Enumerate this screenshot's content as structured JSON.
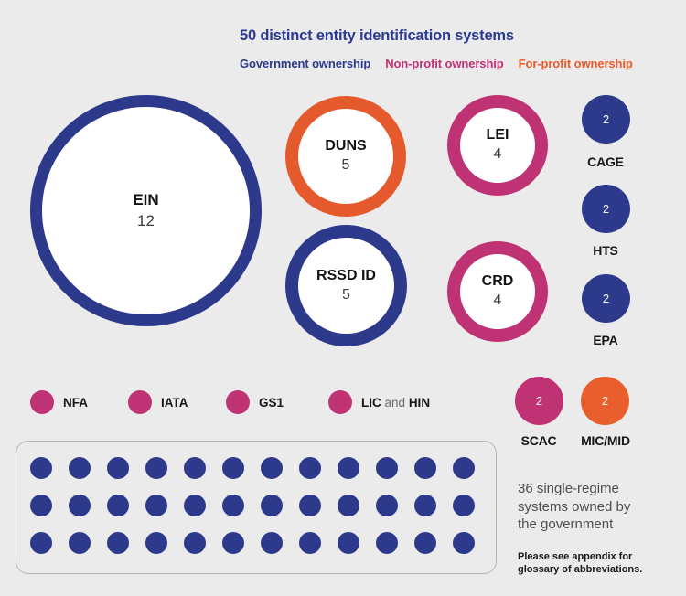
{
  "chart_data": {
    "type": "bubble",
    "title": "50 distinct entity identification systems",
    "background_color": "#ebebeb",
    "legend": [
      {
        "label": "Government ownership",
        "ownership": "government",
        "color": "#2d3a8c"
      },
      {
        "label": "Non-profit ownership",
        "ownership": "non-profit",
        "color": "#bf3274"
      },
      {
        "label": "For-profit ownership",
        "ownership": "for-profit",
        "color": "#ea5a2b"
      }
    ],
    "bubbles": [
      {
        "name": "EIN",
        "count": 12,
        "ownership": "government",
        "render": "ring"
      },
      {
        "name": "DUNS",
        "count": 5,
        "ownership": "for-profit",
        "render": "ring"
      },
      {
        "name": "LEI",
        "count": 4,
        "ownership": "non-profit",
        "render": "ring"
      },
      {
        "name": "RSSD ID",
        "count": 5,
        "ownership": "government",
        "render": "ring"
      },
      {
        "name": "CRD",
        "count": 4,
        "ownership": "non-profit",
        "render": "ring"
      },
      {
        "name": "CAGE",
        "count": 2,
        "ownership": "government",
        "render": "solid"
      },
      {
        "name": "HTS",
        "count": 2,
        "ownership": "government",
        "render": "solid"
      },
      {
        "name": "EPA",
        "count": 2,
        "ownership": "government",
        "render": "solid"
      },
      {
        "name": "SCAC",
        "count": 2,
        "ownership": "non-profit",
        "render": "solid"
      },
      {
        "name": "MIC/MID",
        "count": 2,
        "ownership": "for-profit",
        "render": "solid"
      }
    ],
    "single_systems": [
      {
        "label": "NFA",
        "count": 1,
        "ownership": "non-profit"
      },
      {
        "label": "IATA",
        "count": 1,
        "ownership": "non-profit"
      },
      {
        "label": "GS1",
        "count": 1,
        "ownership": "non-profit"
      },
      {
        "label_a": "LIC",
        "label_mid": "and",
        "label_b": "HIN",
        "count": 1,
        "ownership": "non-profit"
      }
    ],
    "government_grid": {
      "count": 36,
      "rows": 3,
      "cols": 12
    },
    "caption_lines": [
      "36 single-regime",
      "systems owned by",
      "the government"
    ],
    "footnote_lines": [
      "Please see appendix for",
      "glossary of abbreviations."
    ]
  }
}
